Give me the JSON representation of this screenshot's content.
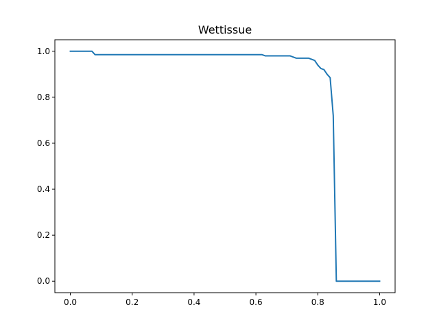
{
  "chart_data": {
    "type": "line",
    "title": "Wettissue",
    "xlabel": "",
    "ylabel": "",
    "xlim": [
      -0.05,
      1.05
    ],
    "ylim": [
      -0.05,
      1.05
    ],
    "xticks": [
      0.0,
      0.2,
      0.4,
      0.6,
      0.8,
      1.0
    ],
    "xtick_labels": [
      "0.0",
      "0.2",
      "0.4",
      "0.6",
      "0.8",
      "1.0"
    ],
    "yticks": [
      0.0,
      0.2,
      0.4,
      0.6,
      0.8,
      1.0
    ],
    "ytick_labels": [
      "0.0",
      "0.2",
      "0.4",
      "0.6",
      "0.8",
      "1.0"
    ],
    "grid": false,
    "series": [
      {
        "color": "#1f77b4",
        "x": [
          0.0,
          0.07,
          0.08,
          0.1,
          0.62,
          0.63,
          0.7,
          0.71,
          0.73,
          0.77,
          0.79,
          0.8,
          0.81,
          0.82,
          0.83,
          0.84,
          0.85,
          0.86,
          0.87,
          1.0
        ],
        "y": [
          1.0,
          1.0,
          0.985,
          0.985,
          0.985,
          0.98,
          0.98,
          0.98,
          0.97,
          0.97,
          0.96,
          0.94,
          0.925,
          0.92,
          0.9,
          0.885,
          0.72,
          0.0,
          0.0,
          0.0
        ]
      }
    ]
  }
}
